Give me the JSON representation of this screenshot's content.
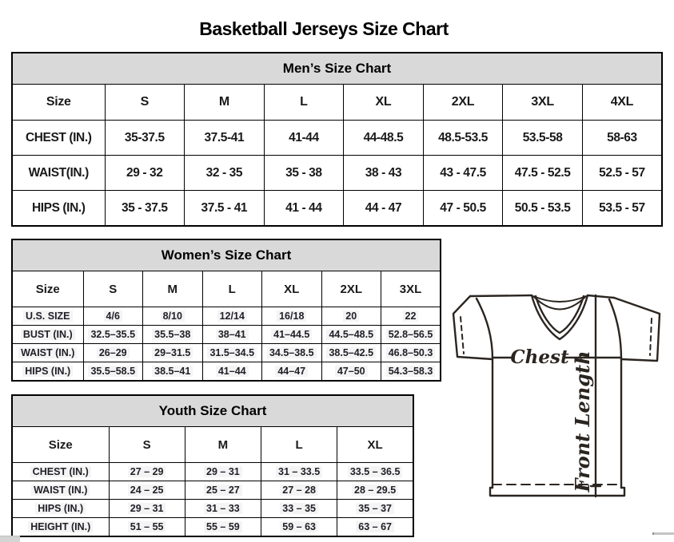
{
  "page_title": "Basketball Jerseys Size Chart",
  "mens_chart": {
    "title": "Men’s Size Chart",
    "columns": [
      "Size",
      "S",
      "M",
      "L",
      "XL",
      "2XL",
      "3XL",
      "4XL"
    ],
    "rows": [
      {
        "label": "CHEST (IN.)",
        "values": [
          "35-37.5",
          "37.5-41",
          "41-44",
          "44-48.5",
          "48.5-53.5",
          "53.5-58",
          "58-63"
        ]
      },
      {
        "label": "WAIST(IN.)",
        "values": [
          "29 - 32",
          "32 - 35",
          "35 - 38",
          "38 - 43",
          "43 - 47.5",
          "47.5 - 52.5",
          "52.5 - 57"
        ]
      },
      {
        "label": "HIPS (IN.)",
        "values": [
          "35 - 37.5",
          "37.5 - 41",
          "41 - 44",
          "44 - 47",
          "47 - 50.5",
          "50.5 - 53.5",
          "53.5 - 57"
        ]
      }
    ]
  },
  "womens_chart": {
    "title": "Women’s Size Chart",
    "columns": [
      "Size",
      "S",
      "M",
      "L",
      "XL",
      "2XL",
      "3XL"
    ],
    "rows": [
      {
        "label": "U.S. SIZE",
        "values": [
          "4/6",
          "8/10",
          "12/14",
          "16/18",
          "20",
          "22"
        ]
      },
      {
        "label": "BUST (IN.)",
        "values": [
          "32.5–35.5",
          "35.5–38",
          "38–41",
          "41–44.5",
          "44.5–48.5",
          "52.8–56.5"
        ]
      },
      {
        "label": "WAIST (IN.)",
        "values": [
          "26–29",
          "29–31.5",
          "31.5–34.5",
          "34.5–38.5",
          "38.5–42.5",
          "46.8–50.3"
        ]
      },
      {
        "label": "HIPS (IN.)",
        "values": [
          "35.5–58.5",
          "38.5–41",
          "41–44",
          "44–47",
          "47–50",
          "54.3–58.3"
        ]
      }
    ]
  },
  "youth_chart": {
    "title": "Youth Size Chart",
    "columns": [
      "Size",
      "S",
      "M",
      "L",
      "XL"
    ],
    "rows": [
      {
        "label": "CHEST (IN.)",
        "values": [
          "27 – 29",
          "29 – 31",
          "31 – 33.5",
          "33.5 – 36.5"
        ]
      },
      {
        "label": "WAIST (IN.)",
        "values": [
          "24 – 25",
          "25 – 27",
          "27 – 28",
          "28 – 29.5"
        ]
      },
      {
        "label": "HIPS (IN.)",
        "values": [
          "29 – 31",
          "31 – 33",
          "33 – 35",
          "35 – 37"
        ]
      },
      {
        "label": "HEIGHT (IN.)",
        "values": [
          "51 – 55",
          "55 – 59",
          "59 – 63",
          "63 – 67"
        ]
      }
    ]
  },
  "diagram": {
    "chest_label": "Chest",
    "front_length_label": "Front Length"
  },
  "colors": {
    "table_title_bg": "#d9d9d9",
    "border": "#000000",
    "text": "#1a1a1a",
    "diagram_stroke": "#2b2520",
    "value_highlight": "#f4f4f4"
  }
}
